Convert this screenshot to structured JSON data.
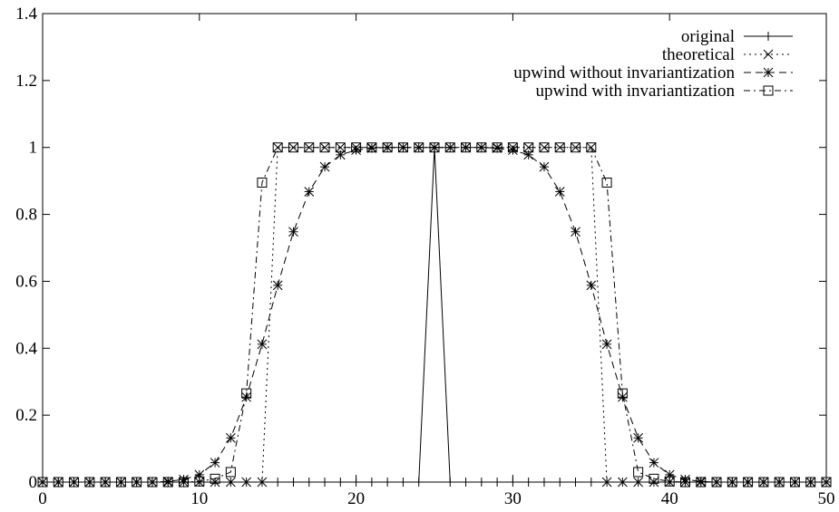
{
  "chart_data": {
    "type": "line",
    "title": "",
    "xlabel": "",
    "ylabel": "",
    "xlim": [
      0,
      50
    ],
    "ylim": [
      0,
      1.4
    ],
    "x_ticks": [
      "0",
      "10",
      "20",
      "30",
      "40",
      "50"
    ],
    "y_ticks": [
      "0",
      "0.2",
      "0.4",
      "0.6",
      "0.8",
      "1",
      "1.2",
      "1.4"
    ],
    "x_tick_values": [
      0,
      10,
      20,
      30,
      40,
      50
    ],
    "y_tick_values": [
      0,
      0.2,
      0.4,
      0.6,
      0.8,
      1,
      1.2,
      1.4
    ],
    "grid": false,
    "legend_position": "top-right",
    "x": [
      0,
      1,
      2,
      3,
      4,
      5,
      6,
      7,
      8,
      9,
      10,
      11,
      12,
      13,
      14,
      15,
      16,
      17,
      18,
      19,
      20,
      21,
      22,
      23,
      24,
      25,
      26,
      27,
      28,
      29,
      30,
      31,
      32,
      33,
      34,
      35,
      36,
      37,
      38,
      39,
      40,
      41,
      42,
      43,
      44,
      45,
      46,
      47,
      48,
      49,
      50
    ],
    "series": [
      {
        "name": "original",
        "line": "solid",
        "marker": "plus",
        "values": [
          0,
          0,
          0,
          0,
          0,
          0,
          0,
          0,
          0,
          0,
          0,
          0,
          0,
          0,
          0,
          0,
          0,
          0,
          0,
          0,
          0,
          0,
          0,
          0,
          0,
          1,
          0,
          0,
          0,
          0,
          0,
          0,
          0,
          0,
          0,
          0,
          0,
          0,
          0,
          0,
          0,
          0,
          0,
          0,
          0,
          0,
          0,
          0,
          0,
          0,
          0
        ]
      },
      {
        "name": "theoretical",
        "line": "dotted",
        "marker": "x",
        "values": [
          0,
          0,
          0,
          0,
          0,
          0,
          0,
          0,
          0,
          0,
          0,
          0,
          0,
          0,
          0,
          1,
          1,
          1,
          1,
          1,
          1,
          1,
          1,
          1,
          1,
          1,
          1,
          1,
          1,
          1,
          1,
          1,
          1,
          1,
          1,
          1,
          0,
          0,
          0,
          0,
          0,
          0,
          0,
          0,
          0,
          0,
          0,
          0,
          0,
          0,
          0
        ]
      },
      {
        "name": "upwind without invariantization",
        "line": "dashed",
        "marker": "star",
        "values": [
          0,
          0,
          0,
          0,
          0,
          0,
          0,
          0,
          0.002,
          0.008,
          0.022,
          0.058,
          0.132,
          0.254,
          0.412,
          0.588,
          0.748,
          0.868,
          0.942,
          0.978,
          0.992,
          0.998,
          1,
          1,
          1,
          1,
          1,
          1,
          1,
          0.998,
          0.992,
          0.978,
          0.942,
          0.868,
          0.748,
          0.588,
          0.412,
          0.254,
          0.132,
          0.058,
          0.022,
          0.008,
          0.002,
          0,
          0,
          0,
          0,
          0,
          0,
          0,
          0
        ]
      },
      {
        "name": "upwind with invariantization",
        "line": "dash-dot",
        "marker": "square",
        "values": [
          0,
          0,
          0,
          0,
          0,
          0,
          0,
          0,
          0,
          0,
          0.002,
          0.01,
          0.03,
          0.265,
          0.895,
          1,
          1,
          1,
          1,
          1,
          1,
          1,
          1,
          1,
          1,
          1,
          1,
          1,
          1,
          1,
          1,
          1,
          1,
          1,
          1,
          1,
          0.895,
          0.265,
          0.03,
          0.01,
          0.002,
          0,
          0,
          0,
          0,
          0,
          0,
          0,
          0,
          0,
          0
        ]
      }
    ]
  }
}
